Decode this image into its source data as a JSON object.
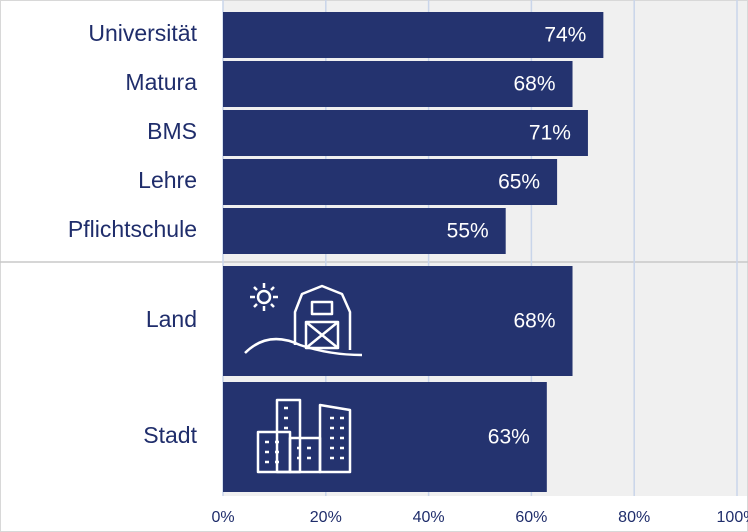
{
  "chart_data": [
    {
      "type": "bar",
      "orientation": "horizontal",
      "categories": [
        "Universität",
        "Matura",
        "BMS",
        "Lehre",
        "Pflichtschule"
      ],
      "values": [
        74,
        68,
        71,
        65,
        55
      ],
      "value_labels": [
        "74%",
        "68%",
        "71%",
        "65%",
        "55%"
      ],
      "color": "#24336f",
      "xlim": [
        0,
        100
      ],
      "xticks": [
        0,
        20,
        40,
        60,
        80,
        100
      ],
      "grid": true
    },
    {
      "type": "bar",
      "orientation": "horizontal",
      "categories": [
        "Land",
        "Stadt"
      ],
      "values": [
        68,
        63
      ],
      "value_labels": [
        "68%",
        "63%"
      ],
      "color": "#24336f",
      "xlim": [
        0,
        100
      ],
      "xticks": [
        {
          "value": 0,
          "label": "0%"
        },
        {
          "value": 20,
          "label": "20%"
        },
        {
          "value": 40,
          "label": "40%"
        },
        {
          "value": 60,
          "label": "60%"
        },
        {
          "value": 80,
          "label": "80%"
        },
        {
          "value": 100,
          "label": "100%"
        }
      ],
      "grid": true
    }
  ]
}
